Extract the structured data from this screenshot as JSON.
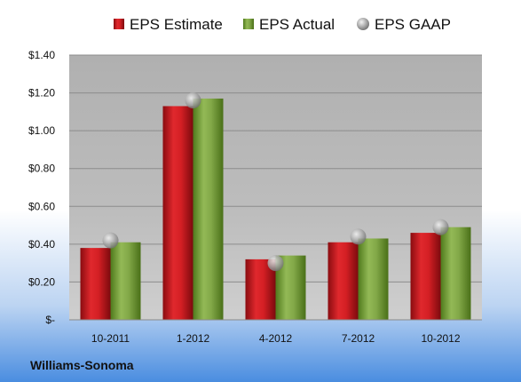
{
  "chart_data": {
    "type": "bar",
    "title": "",
    "xlabel": "",
    "ylabel": "",
    "categories": [
      "10-2011",
      "1-2012",
      "4-2012",
      "7-2012",
      "10-2012"
    ],
    "series": [
      {
        "name": "EPS Estimate",
        "type": "bar",
        "color": "#c8181e",
        "values": [
          0.38,
          1.13,
          0.32,
          0.41,
          0.46
        ]
      },
      {
        "name": "EPS Actual",
        "type": "bar",
        "color": "#7aa03a",
        "values": [
          0.41,
          1.17,
          0.34,
          0.43,
          0.49
        ]
      },
      {
        "name": "EPS GAAP",
        "type": "scatter",
        "color": "#a8a8a8",
        "values": [
          0.42,
          1.16,
          0.3,
          0.44,
          0.49
        ]
      }
    ],
    "ylim": [
      0,
      1.4
    ],
    "yticks": [
      0,
      0.2,
      0.4,
      0.6,
      0.8,
      1.0,
      1.2,
      1.4
    ],
    "ytick_labels": [
      "$-",
      "$0.20",
      "$0.40",
      "$0.60",
      "$0.80",
      "$1.00",
      "$1.20",
      "$1.40"
    ],
    "grid": true,
    "legend_position": "top"
  },
  "footer": {
    "company": "Williams-Sonoma"
  },
  "colors": {
    "background_top": "#ffffff",
    "background_bottom": "#4a8de0",
    "plot_area": "#b4b4b4"
  }
}
